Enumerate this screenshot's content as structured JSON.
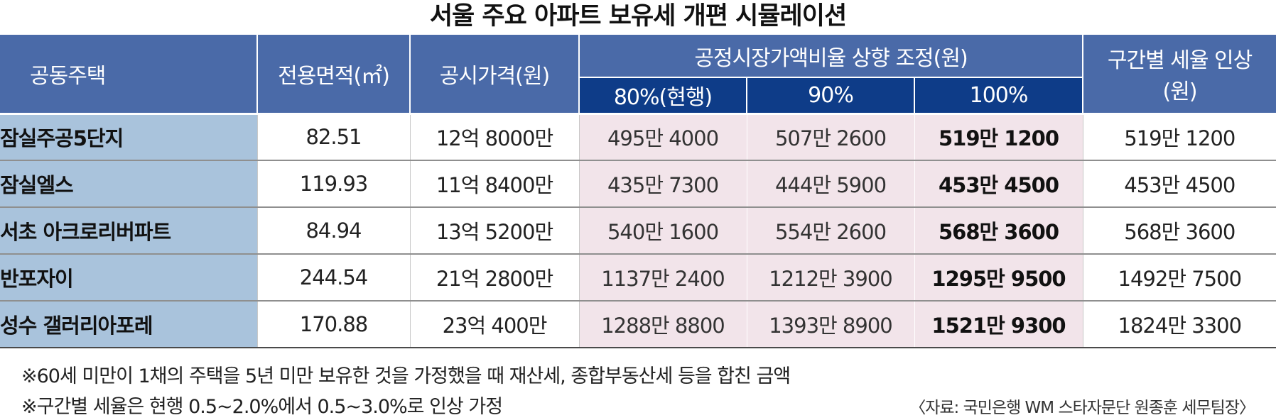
{
  "title": "서울 주요 아파트 보유세 개편 시뮬레이션",
  "headers": {
    "house": "공동주택",
    "area": "전용면적(㎡)",
    "price": "공시가격(원)",
    "ratio_group": "공정시장가액비율 상향 조정(원)",
    "ratio_80": "80%(현행)",
    "ratio_90": "90%",
    "ratio_100": "100%",
    "bracket_line1": "구간별 세율 인상",
    "bracket_line2": "(원)"
  },
  "rows": [
    {
      "name": "잠실주공5단지",
      "area": "82.51",
      "price": "12억 8000만",
      "r80": "495만 4000",
      "r90": "507만 2600",
      "r100": "519만 1200",
      "bracket": "519만 1200"
    },
    {
      "name": "잠실엘스",
      "area": "119.93",
      "price": "11억 8400만",
      "r80": "435만 7300",
      "r90": "444만 5900",
      "r100": "453만 4500",
      "bracket": "453만 4500"
    },
    {
      "name": "서초 아크로리버파트",
      "area": "84.94",
      "price": "13억 5200만",
      "r80": "540만 1600",
      "r90": "554만 2600",
      "r100": "568만 3600",
      "bracket": "568만 3600"
    },
    {
      "name": "반포자이",
      "area": "244.54",
      "price": "21억 2800만",
      "r80": "1137만 2400",
      "r90": "1212만 3900",
      "r100": "1295만 9500",
      "bracket": "1492만 7500"
    },
    {
      "name": "성수 갤러리아포레",
      "area": "170.88",
      "price": "23억 400만",
      "r80": "1288만 8800",
      "r90": "1393만 8900",
      "r100": "1521만 9300",
      "bracket": "1824만 3300"
    }
  ],
  "notes": [
    "※60세 미만이 1채의 주택을 5년 미만 보유한 것을 가정했을 때 재산세, 종합부동산세 등을 합친 금액",
    "※구간별 세율은 현행 0.5~2.0%에서 0.5~3.0%로 인상 가정"
  ],
  "source": "〈자료: 국민은행 WM 스타자문단 원종훈 세무팀장〉"
}
